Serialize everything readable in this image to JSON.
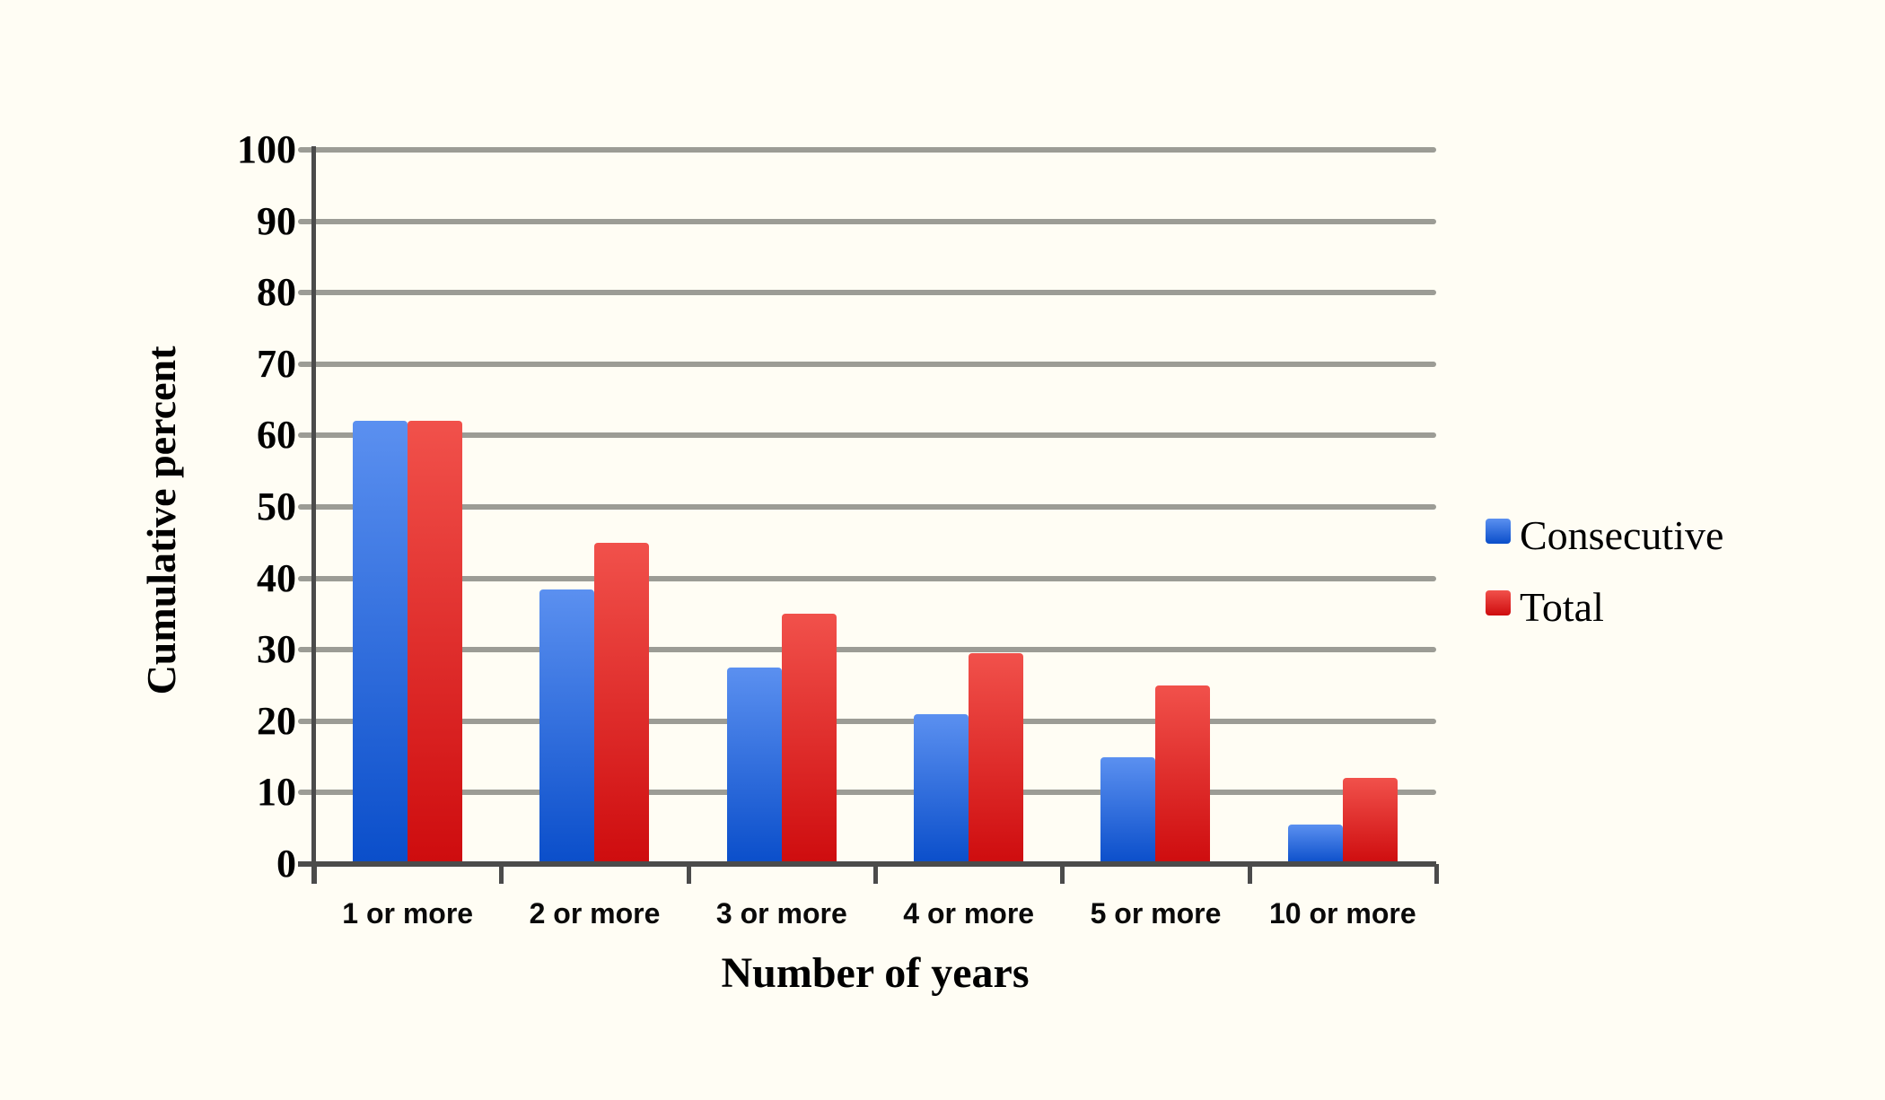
{
  "chart_data": {
    "type": "bar",
    "title": "",
    "categories": [
      "1 or more",
      "2 or more",
      "3 or more",
      "4 or more",
      "5 or more",
      "10 or more"
    ],
    "series": [
      {
        "name": "Consecutive",
        "values": [
          62,
          38.5,
          27.5,
          21,
          15,
          5.5
        ],
        "color_top": "#5b90f0",
        "color_bottom": "#0a4eca"
      },
      {
        "name": "Total",
        "values": [
          62,
          45,
          35,
          29.5,
          25,
          12
        ],
        "color_top": "#f1514b",
        "color_bottom": "#ce0c0e"
      }
    ],
    "xlabel": "Number of years",
    "ylabel": "Cumulative percent",
    "ylim": [
      0,
      100
    ],
    "yticks": [
      0,
      10,
      20,
      30,
      40,
      50,
      60,
      70,
      80,
      90,
      100
    ],
    "grid": true,
    "legend_position": "right"
  },
  "colors": {
    "background": "#fffdf4",
    "gridline": "#9c9c95",
    "axis": "#4b4b4b",
    "text": "#000000"
  }
}
